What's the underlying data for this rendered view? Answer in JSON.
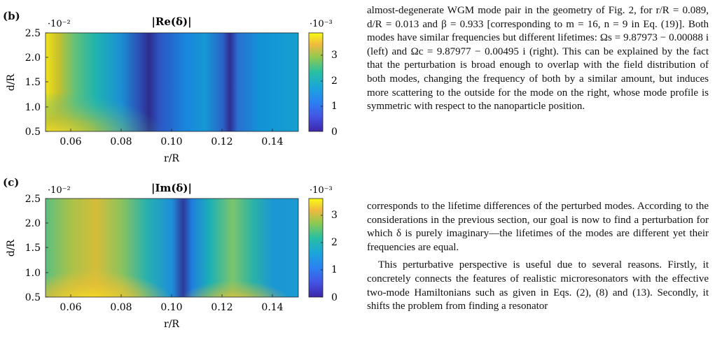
{
  "panels": [
    {
      "letter": "(b)",
      "title": "|Re(δ)|",
      "xexp": "·10⁻²",
      "cexp": "·10⁻³",
      "xlabel": "r/R",
      "ylabel": "d/R",
      "xticks": [
        "0.06",
        "0.08",
        "0.10",
        "0.12",
        "0.14"
      ],
      "yticks": [
        "2.5",
        "2.0",
        "1.5",
        "1.0",
        "0.5"
      ],
      "cticks": [
        "3",
        "2",
        "1",
        "0"
      ]
    },
    {
      "letter": "(c)",
      "title": "|Im(δ)|",
      "xexp": "·10⁻²",
      "cexp": "·10⁻³",
      "xlabel": "r/R",
      "ylabel": "d/R",
      "xticks": [
        "0.06",
        "0.08",
        "0.10",
        "0.12",
        "0.14"
      ],
      "yticks": [
        "2.5",
        "2.0",
        "1.5",
        "1.0",
        "0.5"
      ],
      "cticks": [
        "3",
        "2",
        "1",
        "0"
      ]
    }
  ],
  "chart_data": [
    {
      "type": "heatmap",
      "title": "|Re(δ)|",
      "xlabel": "r/R",
      "ylabel": "d/R",
      "xlim": [
        0.05,
        0.15
      ],
      "ylim": [
        0.5,
        2.5
      ],
      "clim": [
        0,
        0.004
      ],
      "scale_exponent_x": "·10⁻²",
      "scale_exponent_color": "·10⁻³",
      "colormap": "parula",
      "features": "high values at small r/R and low d/R; dark minima bands near r/R≈0.09 and r/R≈0.12"
    },
    {
      "type": "heatmap",
      "title": "|Im(δ)|",
      "xlabel": "r/R",
      "ylabel": "d/R",
      "xlim": [
        0.05,
        0.15
      ],
      "ylim": [
        0.5,
        2.5
      ],
      "clim": [
        0,
        0.0036
      ],
      "scale_exponent_x": "·10⁻²",
      "scale_exponent_color": "·10⁻³",
      "colormap": "parula",
      "features": "maxima near r/R≈0.068 and r/R≈0.12 at low d/R; dark minimum band near r/R≈0.107"
    }
  ],
  "text": {
    "caption": "almost-degenerate WGM mode pair in the geometry of Fig. 2, for r/R = 0.089, d/R = 0.013 and β = 0.933 [corresponding to m = 16, n = 9 in Eq. (19)]. Both modes have similar frequencies but different lifetimes: Ωs = 9.87973 − 0.00088 i (left) and Ωc = 9.87977 − 0.00495 i (right). This can be explained by the fact that the perturbation is broad enough to overlap with the field distribution of both modes, changing the frequency of both by a similar amount, but induces more scattering to the outside for the mode on the right, whose mode profile is symmetric with respect to the nanoparticle position.",
    "para1": "corresponds to the lifetime differences of the perturbed modes. According to the considerations in the previous section, our goal is now to find a perturbation for which δ is purely imaginary—the lifetimes of the modes are different yet their frequencies are equal.",
    "para2": "This perturbative perspective is useful due to several reasons. Firstly, it concretely connects the features of realistic microresonators with the effective two-mode Hamiltonians such as given in Eqs. (2), (8) and (13). Secondly, it shifts the problem from finding a resonator"
  }
}
